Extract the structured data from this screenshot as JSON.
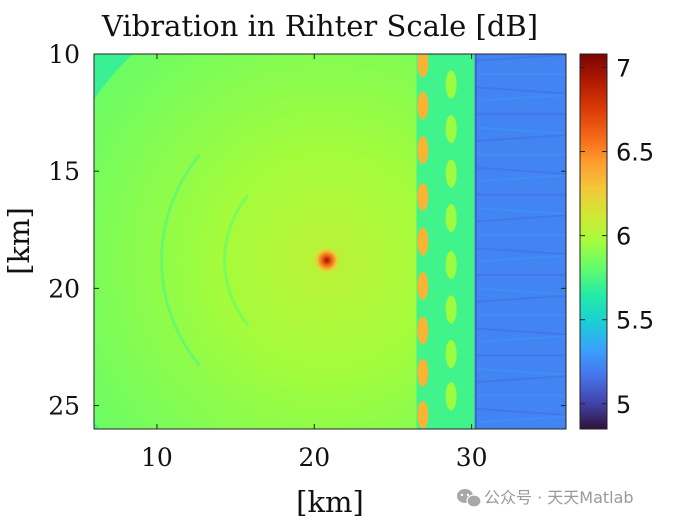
{
  "chart_data": {
    "type": "heatmap",
    "title": "Vibration in Rihter Scale [dB]",
    "xlabel": "[km]",
    "ylabel": "[km]",
    "xlim": [
      6,
      36
    ],
    "ylim": [
      10,
      26
    ],
    "y_reversed": true,
    "xticks": [
      10,
      20,
      30
    ],
    "yticks": [
      10,
      15,
      20,
      25
    ],
    "colorbar": {
      "range": [
        4.85,
        7.08
      ],
      "ticks": [
        5,
        5.5,
        6,
        6.5,
        7
      ],
      "tick_labels": [
        "5",
        "5.5",
        "6",
        "6.5",
        "7"
      ],
      "colormap": [
        "#30123b",
        "#4145ab",
        "#4675ed",
        "#39a2fc",
        "#1bcfd4",
        "#24eca6",
        "#61fc6c",
        "#a4fc3b",
        "#d1e834",
        "#f3c63a",
        "#fe9b2d",
        "#f36315",
        "#d93806",
        "#b11901",
        "#7a0403"
      ]
    },
    "source": {
      "x": 20.8,
      "y": 18.8,
      "peak_value": 7.0
    },
    "near_field": {
      "value": 5.85,
      "near_source_value": 6.05,
      "decay_per_km": 0.0075
    },
    "barrier_band": {
      "x_start": 26.5,
      "x_end": 30.2,
      "value": 5.72
    },
    "hotspots_column_1": {
      "x": 26.9,
      "y": [
        10.4,
        12.2,
        14.1,
        16.1,
        18.0,
        19.9,
        21.8,
        23.6,
        25.4
      ],
      "value": 6.35
    },
    "hotspots_column_2": {
      "x": 28.7,
      "y": [
        11.3,
        13.2,
        15.1,
        17.0,
        19.0,
        20.9,
        22.8,
        24.6
      ],
      "value": 5.95
    },
    "far_field": {
      "x_start": 30.2,
      "value": 5.22
    },
    "sector_boundaries": [
      {
        "radius_km": 10.5,
        "value_offset": -0.1
      },
      {
        "radius_km": 6.5,
        "value_offset": -0.05
      }
    ]
  },
  "watermark": {
    "icon": "wechat-icon",
    "text": "公众号 · 天天Matlab"
  }
}
